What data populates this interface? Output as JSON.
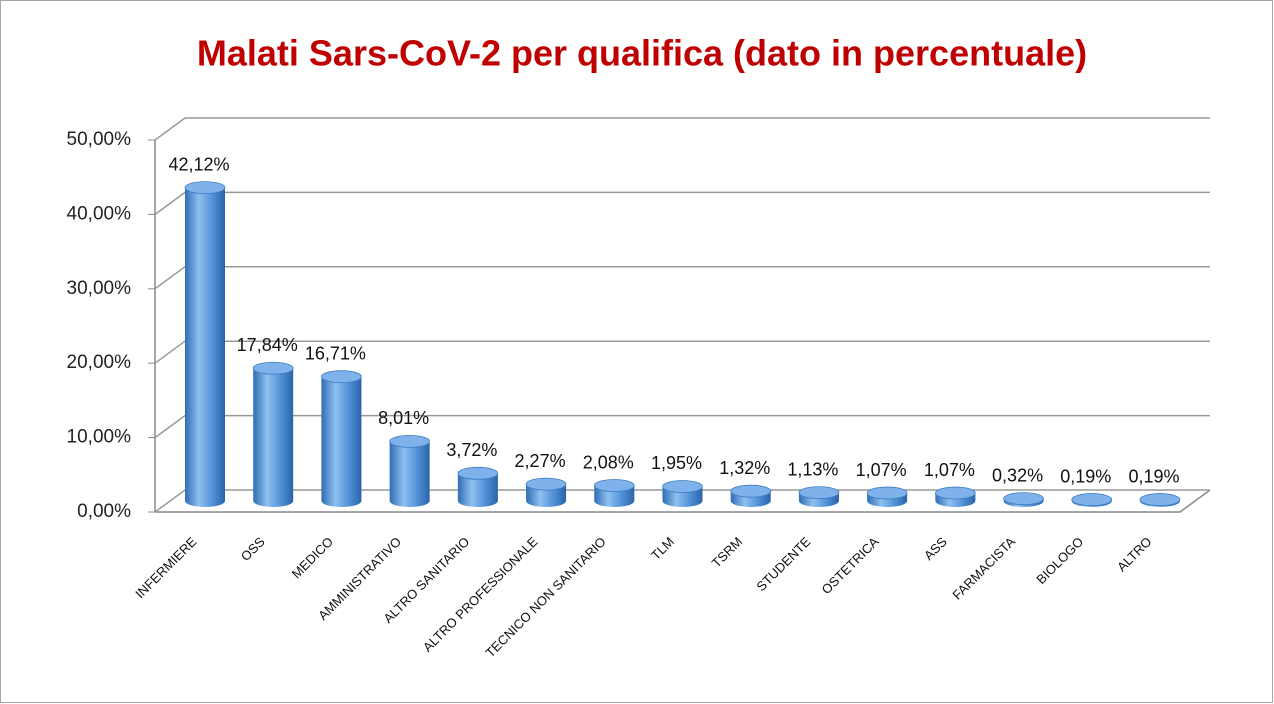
{
  "chart_data": {
    "type": "bar3d",
    "title": "Malati Sars-CoV-2 per qualifica  (dato in percentuale)",
    "categories": [
      "INFERMIERE",
      "OSS",
      "MEDICO",
      "AMMINISTRATIVO",
      "ALTRO SANITARIO",
      "ALTRO PROFESSIONALE",
      "TECNICO NON SANITARIO",
      "TLM",
      "TSRM",
      "STUDENTE",
      "OSTETRICA",
      "ASS",
      "FARMACISTA",
      "BIOLOGO",
      "ALTRO"
    ],
    "values": [
      42.12,
      17.84,
      16.71,
      8.01,
      3.72,
      2.27,
      2.08,
      1.95,
      1.32,
      1.13,
      1.07,
      1.07,
      0.32,
      0.19,
      0.19
    ],
    "value_labels": [
      "42,12%",
      "17,84%",
      "16,71%",
      "8,01%",
      "3,72%",
      "2,27%",
      "2,08%",
      "1,95%",
      "1,32%",
      "1,13%",
      "1,07%",
      "1,07%",
      "0,32%",
      "0,19%",
      "0,19%"
    ],
    "color": "#4f8fd6",
    "ylim": [
      0,
      50
    ],
    "yticks": [
      {
        "value": 0,
        "label": "0,00%"
      },
      {
        "value": 10,
        "label": "10,00%"
      },
      {
        "value": 20,
        "label": "20,00%"
      },
      {
        "value": 30,
        "label": "30,00%"
      },
      {
        "value": 40,
        "label": "40,00%"
      },
      {
        "value": 50,
        "label": "50,00%"
      }
    ],
    "grid": true
  }
}
